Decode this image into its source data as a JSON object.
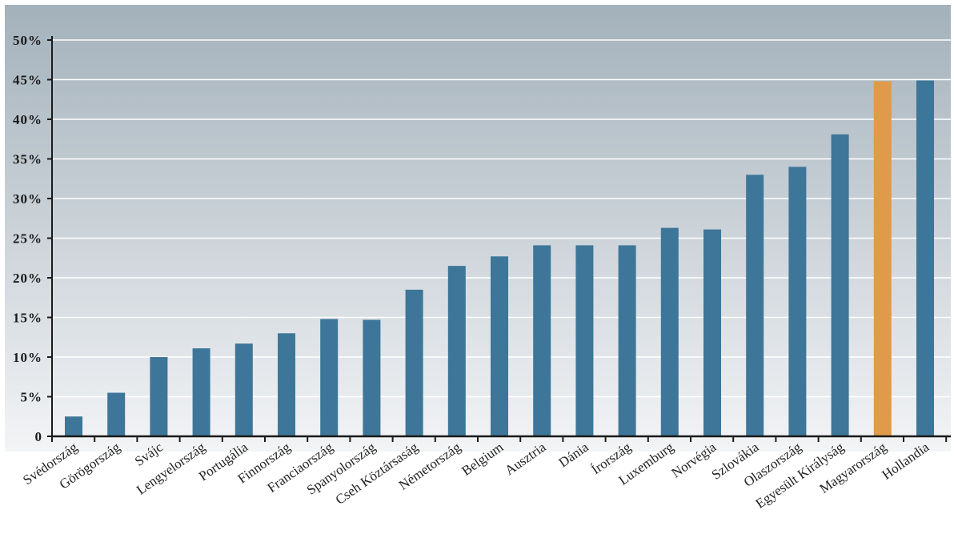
{
  "chart_data": {
    "type": "bar",
    "title": "",
    "xlabel": "",
    "ylabel": "",
    "categories": [
      "Svédország",
      "Görögország",
      "Svájc",
      "Lengyelország",
      "Portugália",
      "Finnország",
      "Franciaország",
      "Spanyolország",
      "Cseh Köztársaság",
      "Németország",
      "Belgium",
      "Ausztria",
      "Dánia",
      "Írország",
      "Luxemburg",
      "Norvégia",
      "Szlovákia",
      "Olaszország",
      "Egyesült Királyság",
      "Magyarország",
      "Hollandia"
    ],
    "values": [
      2.5,
      5.5,
      10,
      11.1,
      11.7,
      13,
      14.8,
      14.7,
      18.5,
      21.5,
      22.7,
      24.1,
      24.1,
      24.1,
      26.3,
      26.1,
      33,
      34,
      38.1,
      44.8,
      44.9
    ],
    "highlight": "Magyarország",
    "ylim": [
      0,
      50
    ],
    "yticks": [
      "0",
      "5%",
      "10%",
      "15%",
      "20%",
      "25%",
      "30%",
      "35%",
      "40%",
      "45%",
      "50%"
    ],
    "ytick_values": [
      0,
      5,
      10,
      15,
      20,
      25,
      30,
      35,
      40,
      45,
      50
    ],
    "grid": true,
    "colors": {
      "bar": "#3d7698",
      "highlight_bar": "#e09a4a",
      "highlight_label": "#e09a4a",
      "bg_top": "#a3b1bb",
      "bg_bottom": "#f3f4f6",
      "grid": "#ffffff",
      "axis": "#1a1a1a"
    }
  }
}
